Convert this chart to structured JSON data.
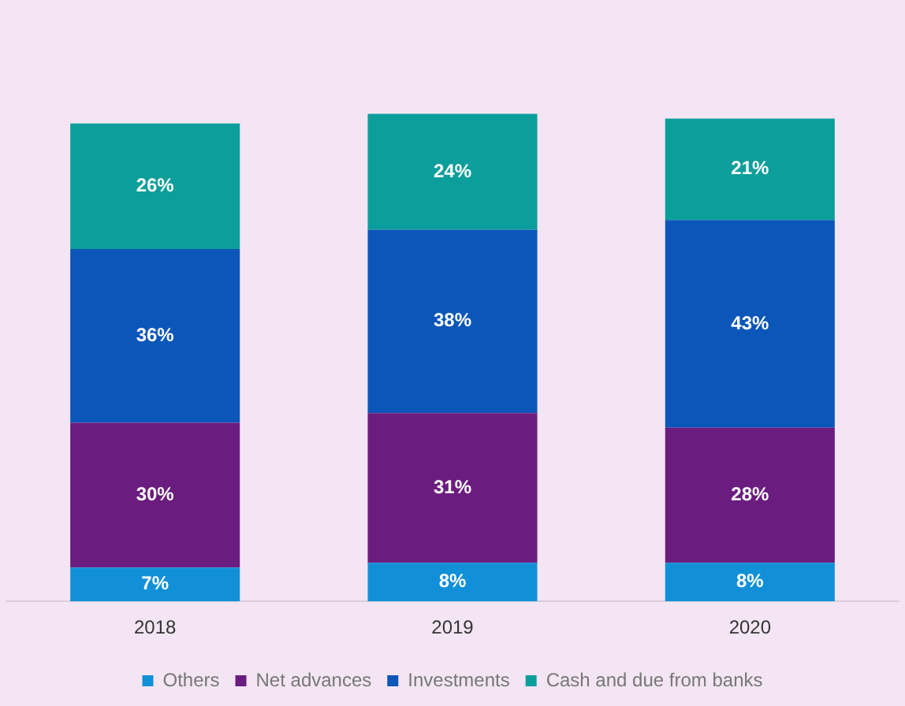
{
  "chart_data": {
    "type": "bar",
    "stacked": true,
    "categories": [
      "2018",
      "2019",
      "2020"
    ],
    "series": [
      {
        "name": "Others",
        "color": "#1190d8",
        "values": [
          7,
          8,
          8
        ],
        "value_labels": [
          "7%",
          "8%",
          "8%"
        ]
      },
      {
        "name": "Net advances",
        "color": "#6b1d7f",
        "values": [
          30,
          31,
          28
        ],
        "value_labels": [
          "30%",
          "31%",
          "28%"
        ]
      },
      {
        "name": "Investments",
        "color": "#0b56b9",
        "values": [
          36,
          38,
          43
        ],
        "value_labels": [
          "36%",
          "38%",
          "43%"
        ]
      },
      {
        "name": "Cash and due from banks",
        "color": "#0c9e9b",
        "values": [
          26,
          24,
          21
        ],
        "value_labels": [
          "26%",
          "24%",
          "21%"
        ]
      }
    ],
    "legend": "bottom",
    "grid": false
  }
}
